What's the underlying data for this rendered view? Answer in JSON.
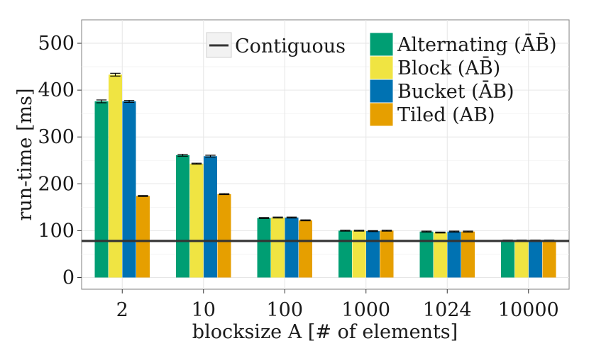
{
  "chart_data": {
    "type": "bar",
    "title": "",
    "xlabel": "blocksize A [# of elements]",
    "ylabel": "run-time [ms]",
    "ylim": [
      -25,
      550
    ],
    "yticks": [
      0,
      100,
      200,
      300,
      400,
      500
    ],
    "ytick_labels": [
      "0",
      "100",
      "200",
      "300",
      "400",
      "500"
    ],
    "grid": true,
    "categories": [
      "2",
      "10",
      "100",
      "1000",
      "1024",
      "10000"
    ],
    "series": [
      {
        "name": "Alternating (ĀB̄)",
        "color": "#009E73",
        "values": [
          376,
          261,
          127,
          100,
          98,
          79
        ],
        "errors": [
          3,
          2,
          1,
          1,
          1,
          1
        ]
      },
      {
        "name": "Block (AB̄)",
        "color": "#F0E442",
        "values": [
          433,
          243,
          128,
          100,
          96,
          79
        ],
        "errors": [
          3,
          1,
          1,
          1,
          1,
          1
        ]
      },
      {
        "name": "Bucket (ĀB)",
        "color": "#0072B2",
        "values": [
          376,
          259,
          128,
          99,
          98,
          79
        ],
        "errors": [
          2,
          2,
          1,
          1,
          1,
          1
        ]
      },
      {
        "name": "Tiled (AB)",
        "color": "#E69F00",
        "values": [
          174,
          178,
          122,
          100,
          98,
          79
        ],
        "errors": [
          1,
          1,
          1,
          1,
          1,
          1
        ]
      }
    ],
    "reference_line": {
      "name": "Contiguous",
      "value": 78,
      "color": "#333333"
    },
    "legend_position": "top-right"
  }
}
